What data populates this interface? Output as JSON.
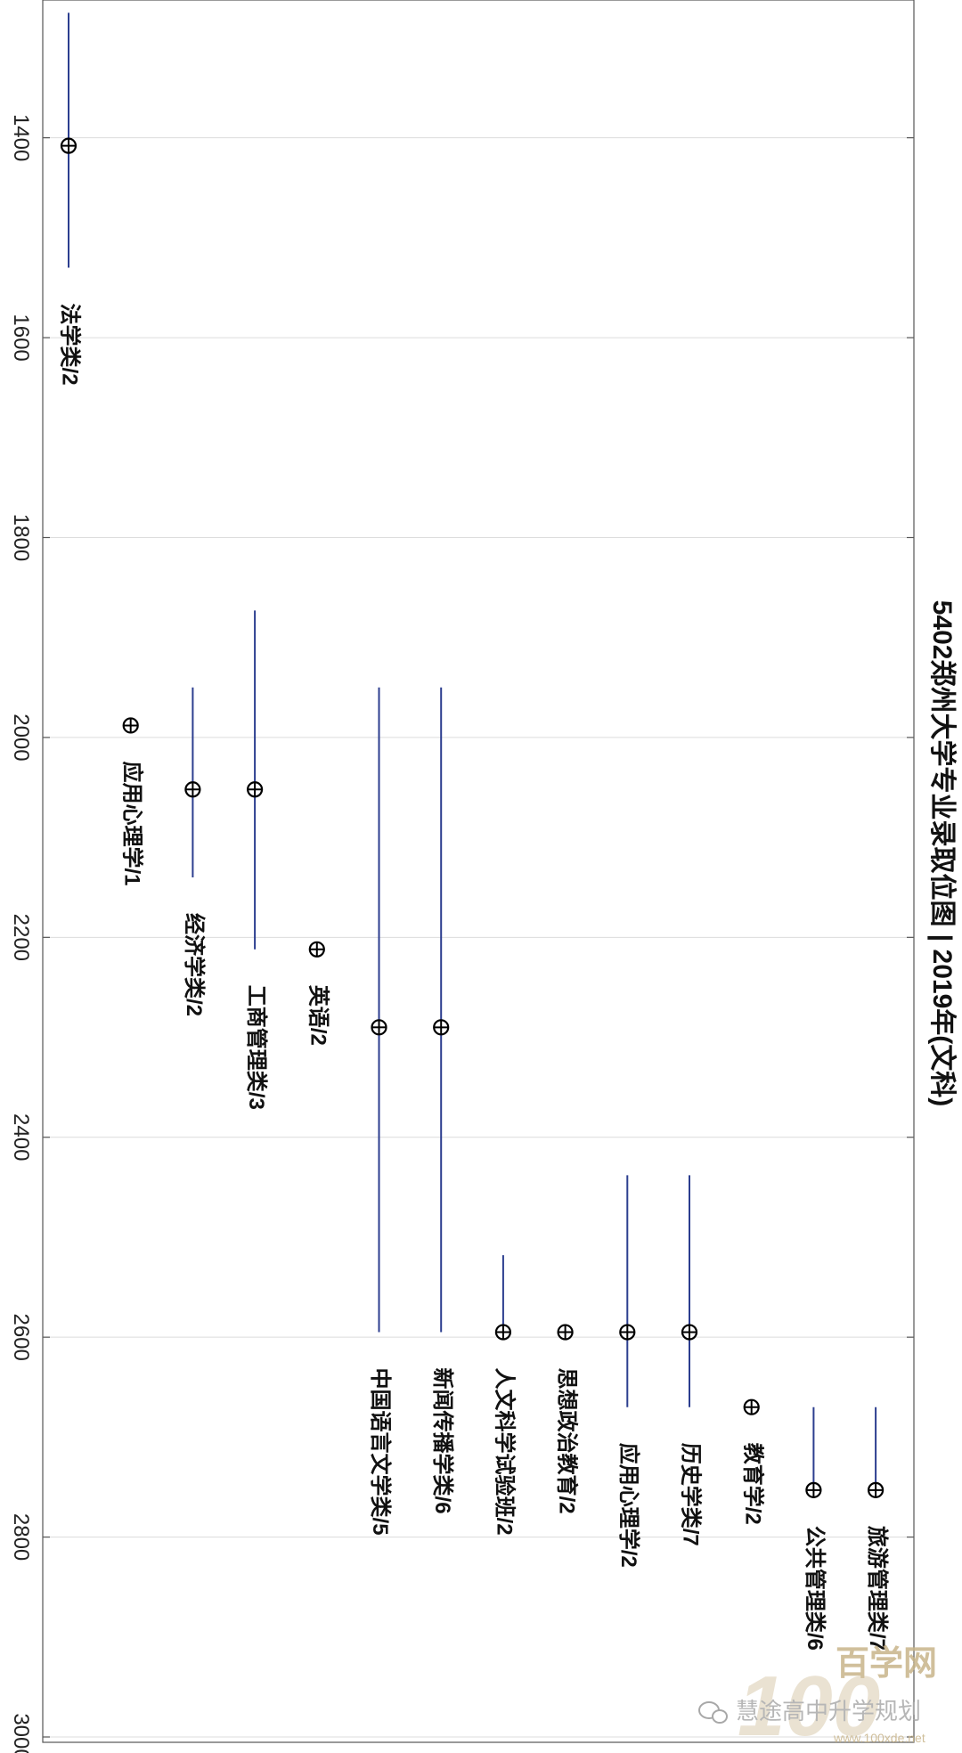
{
  "chart_data": {
    "type": "scatter",
    "title": "5402郑州大学专业录取位图 | 2019年(文科)",
    "orientation": "rotated-90-clockwise",
    "xlim": [
      1280,
      3000
    ],
    "xticks": [
      1400,
      1600,
      1800,
      2000,
      2200,
      2400,
      2600,
      2800,
      3000
    ],
    "grid": true,
    "points": [
      {
        "label": "法学类/2",
        "value": 1408,
        "range": [
          1275,
          1530
        ]
      },
      {
        "label": "应用心理学/1",
        "value": 1988,
        "range": null
      },
      {
        "label": "经济学类/2",
        "value": 2052,
        "range": [
          1950,
          2140
        ]
      },
      {
        "label": "工商管理类/3",
        "value": 2052,
        "range": [
          1873,
          2212
        ]
      },
      {
        "label": "英语/2",
        "value": 2212,
        "range": null
      },
      {
        "label": "中国语言文学类/5",
        "value": 2290,
        "range": [
          1950,
          2595
        ]
      },
      {
        "label": "新闻传播学类/6",
        "value": 2290,
        "range": [
          1950,
          2595
        ]
      },
      {
        "label": "人文科学试验班/2",
        "value": 2595,
        "range": [
          2518,
          2595
        ]
      },
      {
        "label": "思想政治教育/2",
        "value": 2595,
        "range": null
      },
      {
        "label": "应用心理学/2",
        "value": 2595,
        "range": [
          2438,
          2670
        ]
      },
      {
        "label": "历史学类/7",
        "value": 2595,
        "range": [
          2438,
          2670
        ]
      },
      {
        "label": "教育学/2",
        "value": 2670,
        "range": null
      },
      {
        "label": "公共管理类/6",
        "value": 2753,
        "range": [
          2670,
          2753
        ]
      },
      {
        "label": "旅游管理类/7",
        "value": 2753,
        "range": [
          2670,
          2753
        ]
      }
    ]
  },
  "watermark": {
    "logo_text": "100",
    "brand_text": "百学网",
    "caption": "慧途高中升学规划",
    "url": "www.100xde.net"
  },
  "colors": {
    "range_line": "#2c3e8f",
    "marker": "#000000",
    "grid": "#dcdcdc",
    "watermark": "#c8b48a"
  }
}
